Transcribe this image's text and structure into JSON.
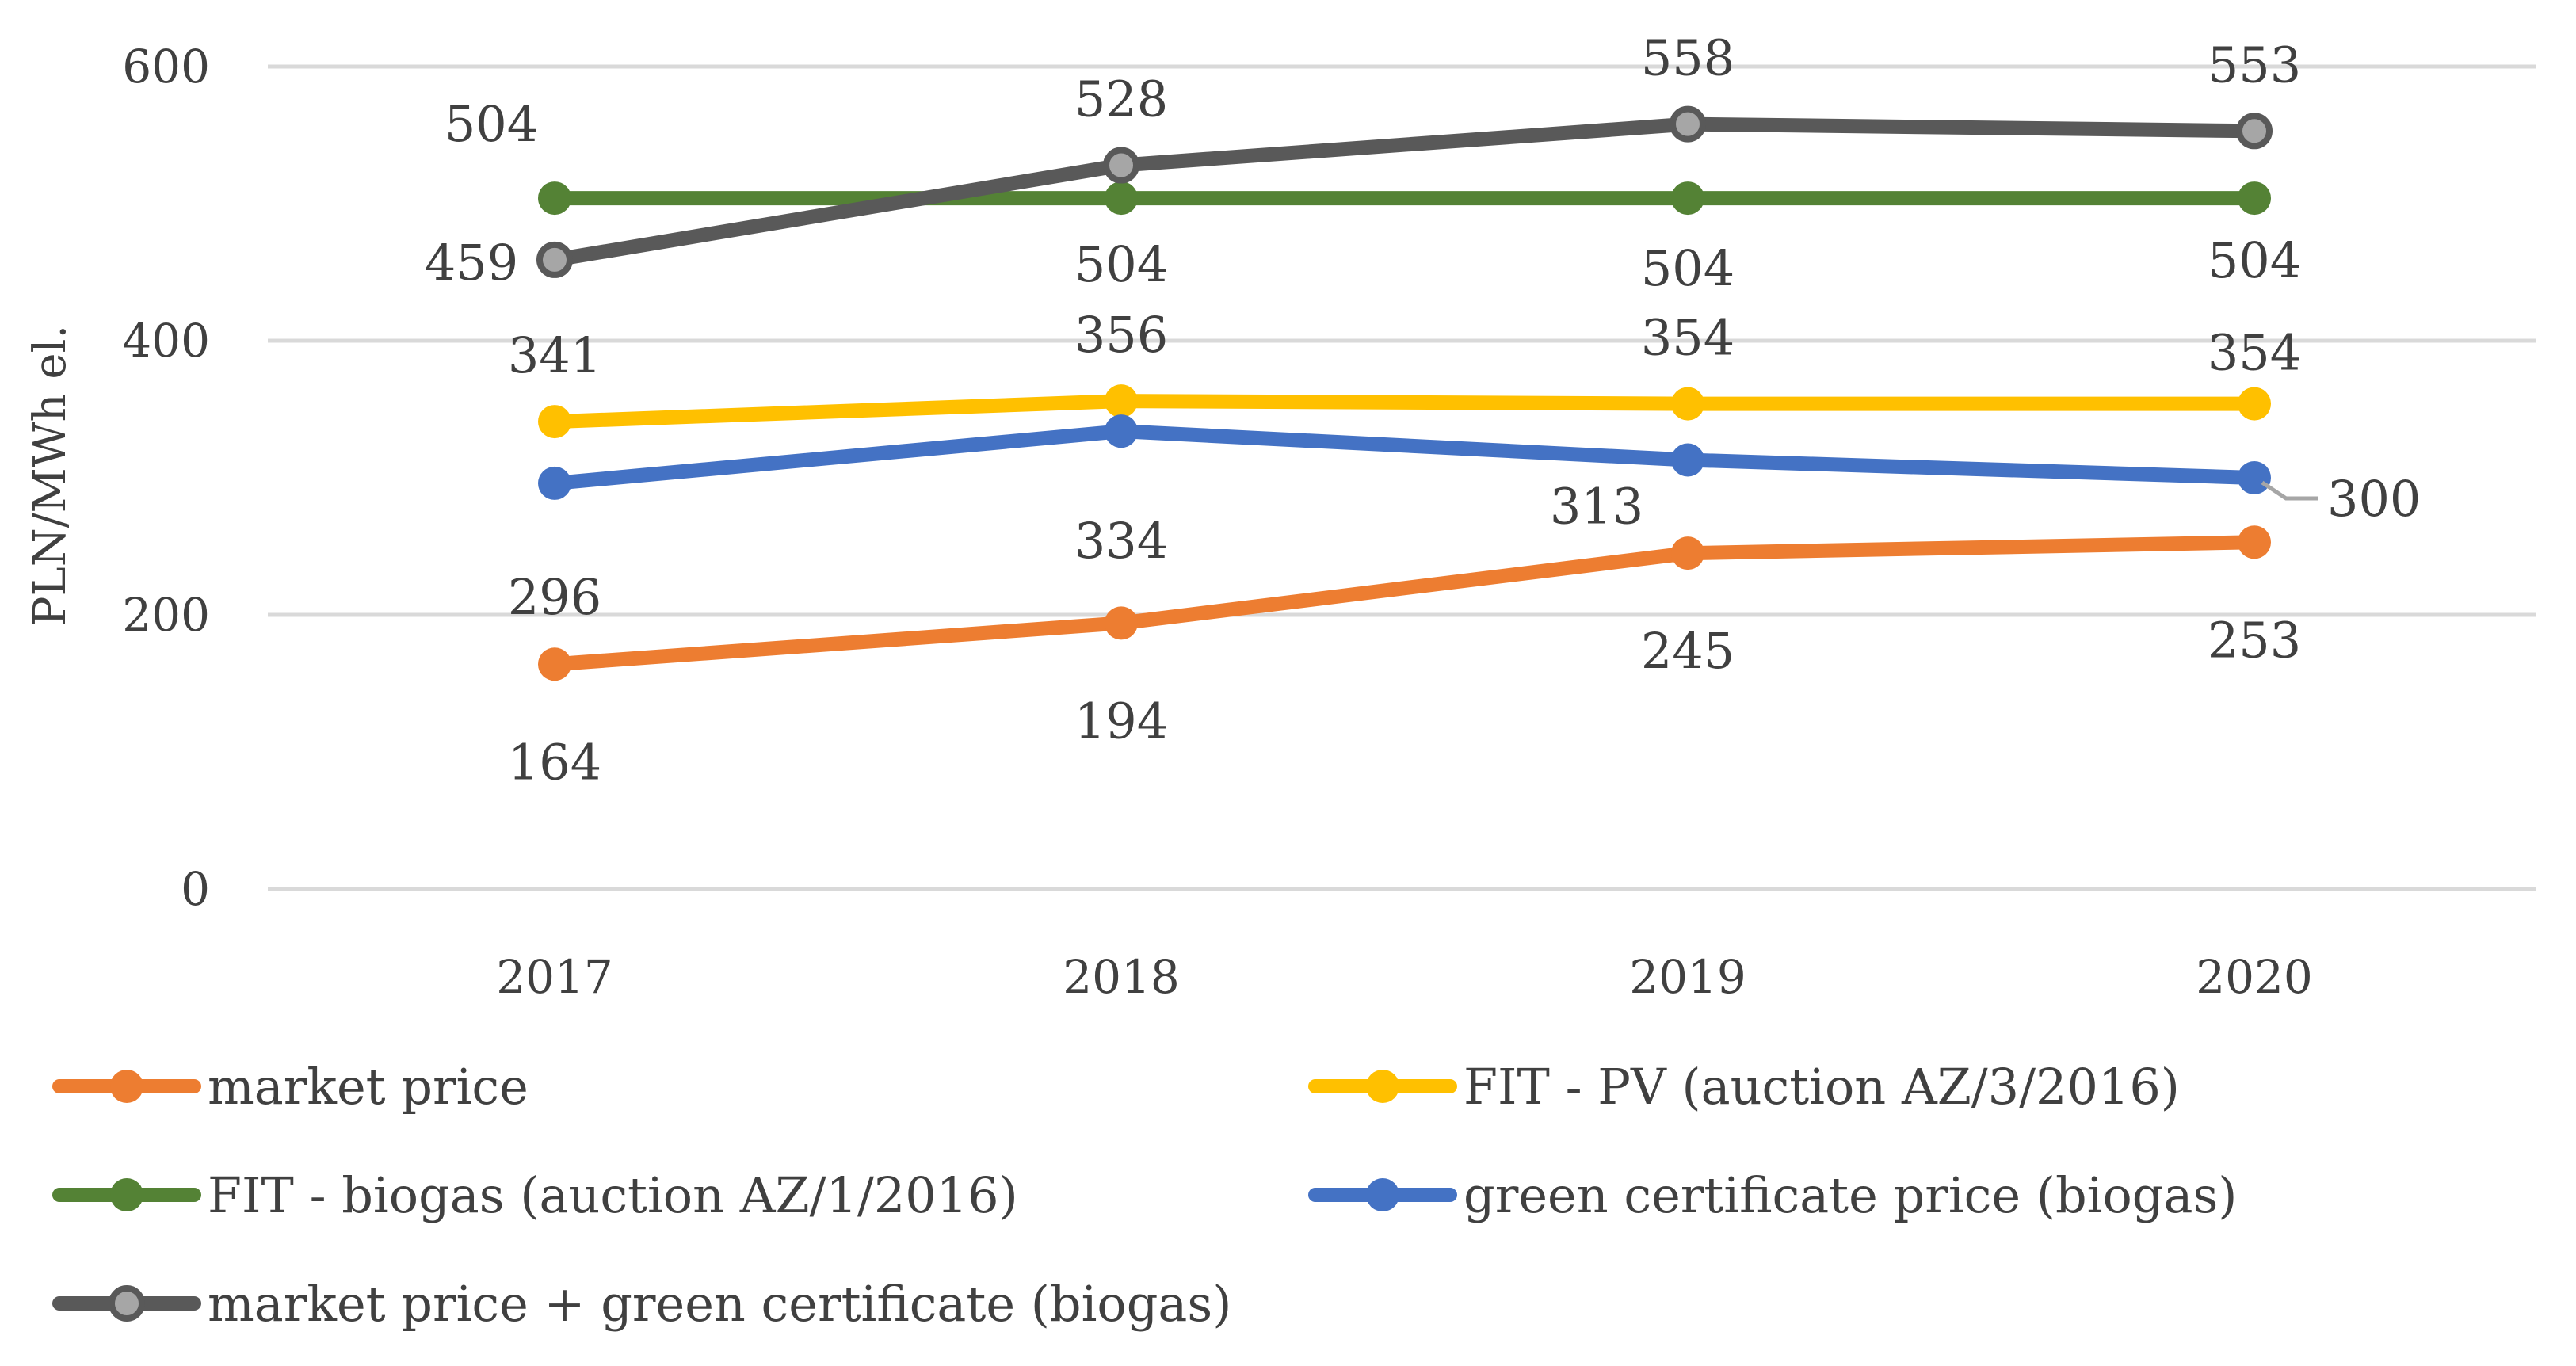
{
  "chart_data": {
    "type": "line",
    "ylabel": "PLN/MWh el.",
    "xlabel": "",
    "categories": [
      "2017",
      "2018",
      "2019",
      "2020"
    ],
    "ylim": [
      0,
      600
    ],
    "yticks": [
      0,
      200,
      400,
      600
    ],
    "grid": true,
    "legend_position": "bottom",
    "series": [
      {
        "name": "market price",
        "values": [
          164,
          194,
          245,
          253
        ],
        "color": "#ED7D31",
        "marker_fill": "#ED7D31",
        "label_position": "below"
      },
      {
        "name": "FIT - PV (auction AZ/3/2016)",
        "values": [
          341,
          356,
          354,
          354
        ],
        "color": "#FFC000",
        "marker_fill": "#FFC000",
        "label_position": "above"
      },
      {
        "name": "FIT - biogas (auction AZ/1/2016)",
        "values": [
          504,
          504,
          504,
          504
        ],
        "color": "#548235",
        "marker_fill": "#548235",
        "label_position": "below"
      },
      {
        "name": "green certificate price (biogas)",
        "values": [
          296,
          334,
          313,
          300
        ],
        "color": "#4472C4",
        "marker_fill": "#4472C4",
        "label_position": "below"
      },
      {
        "name": "market price + green certificate (biogas)",
        "values": [
          459,
          528,
          558,
          553
        ],
        "color": "#595959",
        "marker_fill": "#A6A6A6",
        "label_position": "above"
      }
    ]
  }
}
